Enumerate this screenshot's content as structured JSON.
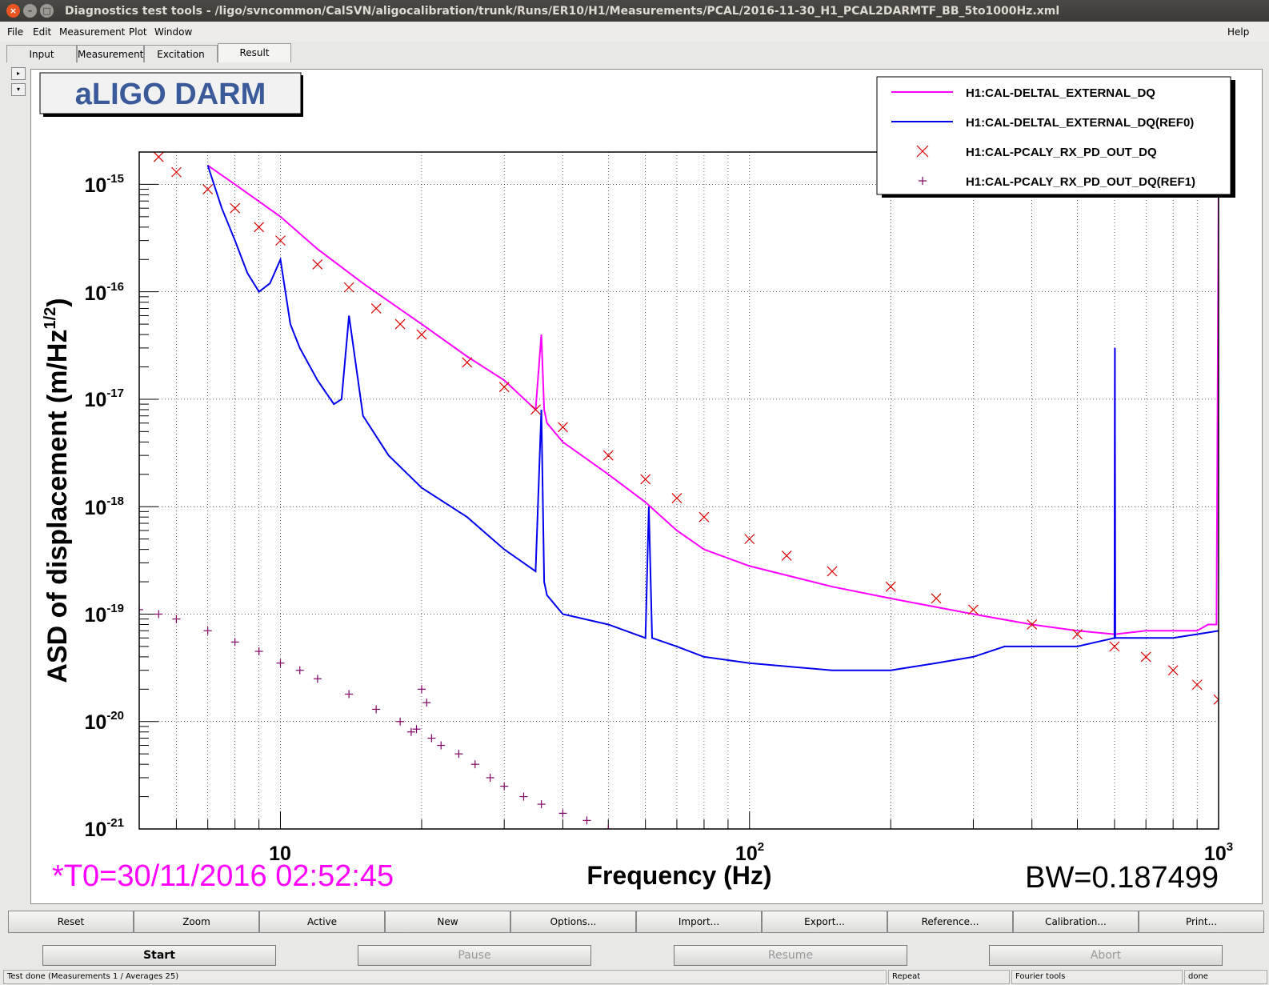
{
  "window": {
    "title": "Diagnostics test tools - /ligo/svncommon/CalSVN/aligocalibration/trunk/Runs/ER10/H1/Measurements/PCAL/2016-11-30_H1_PCAL2DARMTF_BB_5to1000Hz.xml",
    "close_glyph": "×",
    "min_glyph": "–",
    "max_glyph": "□"
  },
  "menu": {
    "file": "File",
    "edit": "Edit",
    "measurement": "Measurement",
    "plot": "Plot",
    "window": "Window",
    "help": "Help"
  },
  "tabs": [
    "Input",
    "Measurement",
    "Excitation",
    "Result"
  ],
  "side_arrows": [
    "▸",
    "▾"
  ],
  "plot": {
    "title_box": "aLIGO DARM",
    "ylabel": "ASD of displacement (m/Hz",
    "ylabel_sup": "1/2",
    "ylabel_end": ")",
    "xlabel": "Frequency (Hz)",
    "x_ticks": [
      {
        "base": "10",
        "exp": ""
      },
      {
        "base": "10",
        "exp": "2"
      },
      {
        "base": "10",
        "exp": "3"
      }
    ],
    "y_ticks": [
      {
        "base": "10",
        "exp": "-15"
      },
      {
        "base": "10",
        "exp": "-16"
      },
      {
        "base": "10",
        "exp": "-17"
      },
      {
        "base": "10",
        "exp": "-18"
      },
      {
        "base": "10",
        "exp": "-19"
      },
      {
        "base": "10",
        "exp": "-20"
      },
      {
        "base": "10",
        "exp": "-21"
      }
    ],
    "t0": "*T0=30/11/2016 02:52:45",
    "bw": "BW=0.187499",
    "colors": {
      "magenta": "#ff00ff",
      "blue": "#0000ee",
      "red": "#dd0000",
      "purple": "#800066",
      "t0": "#ff00ff",
      "title": "#3a5a9a"
    }
  },
  "chart_data": {
    "type": "line",
    "xlabel": "Frequency (Hz)",
    "ylabel": "ASD of displacement (m/Hz^1/2)",
    "x_scale": "log",
    "y_scale": "log",
    "xlim": [
      5,
      1000
    ],
    "ylim": [
      1e-21,
      2e-15
    ],
    "grid": true,
    "legend": "top-right",
    "series": [
      {
        "name": "H1:CAL-DELTAL_EXTERNAL_DQ",
        "style": "line",
        "color": "#ff00ff",
        "x": [
          7,
          8,
          10,
          12,
          15,
          20,
          25,
          30,
          35,
          36,
          36.5,
          37,
          40,
          50,
          60,
          70,
          80,
          100,
          150,
          200,
          300,
          400,
          500,
          600,
          601,
          602,
          700,
          800,
          900,
          950,
          990,
          1000
        ],
        "y": [
          1.5e-15,
          1e-15,
          5e-16,
          2.5e-16,
          1.2e-16,
          5e-17,
          2.5e-17,
          1.5e-17,
          8e-18,
          4e-17,
          8e-18,
          6e-18,
          4e-18,
          2e-18,
          1.1e-18,
          6e-19,
          4e-19,
          2.8e-19,
          1.8e-19,
          1.4e-19,
          1e-19,
          8e-20,
          7e-20,
          6.5e-20,
          3e-17,
          6.5e-20,
          7e-20,
          7e-20,
          7e-20,
          8e-20,
          8e-20,
          1e-15
        ]
      },
      {
        "name": "H1:CAL-DELTAL_EXTERNAL_DQ(REF0)",
        "style": "line",
        "color": "#0000ee",
        "x": [
          7,
          7.5,
          8,
          8.5,
          9,
          9.5,
          10,
          10.5,
          11,
          12,
          13,
          13.5,
          14,
          15,
          17,
          20,
          25,
          30,
          35,
          36,
          36.5,
          37,
          40,
          50,
          60,
          61,
          62,
          70,
          80,
          100,
          150,
          200,
          250,
          300,
          350,
          400,
          450,
          500,
          550,
          600,
          601,
          602,
          700,
          800,
          900,
          1000
        ],
        "y": [
          1.5e-15,
          6e-16,
          3e-16,
          1.5e-16,
          1e-16,
          1.2e-16,
          2e-16,
          5e-17,
          3e-17,
          1.5e-17,
          9e-18,
          1e-17,
          6e-17,
          7e-18,
          3e-18,
          1.5e-18,
          8e-19,
          4e-19,
          2.5e-19,
          8e-18,
          2e-19,
          1.5e-19,
          1e-19,
          8e-20,
          6e-20,
          1e-18,
          6e-20,
          5e-20,
          4e-20,
          3.5e-20,
          3e-20,
          3e-20,
          3.5e-20,
          4e-20,
          5e-20,
          5e-20,
          5e-20,
          5e-20,
          5.5e-20,
          6e-20,
          3e-17,
          6e-20,
          6e-20,
          6e-20,
          6.5e-20,
          7e-20
        ]
      },
      {
        "name": "H1:CAL-PCALY_RX_PD_OUT_DQ",
        "style": "marker-x",
        "color": "#dd0000",
        "x": [
          5.5,
          6,
          7,
          8,
          9,
          10,
          12,
          14,
          16,
          18,
          20,
          25,
          30,
          35,
          40,
          50,
          60,
          70,
          80,
          100,
          120,
          150,
          200,
          250,
          300,
          400,
          500,
          600,
          700,
          800,
          900,
          1000
        ],
        "y": [
          1.8e-15,
          1.3e-15,
          9e-16,
          6e-16,
          4e-16,
          3e-16,
          1.8e-16,
          1.1e-16,
          7e-17,
          5e-17,
          4e-17,
          2.2e-17,
          1.3e-17,
          8e-18,
          5.5e-18,
          3e-18,
          1.8e-18,
          1.2e-18,
          8e-19,
          5e-19,
          3.5e-19,
          2.5e-19,
          1.8e-19,
          1.4e-19,
          1.1e-19,
          8e-20,
          6.5e-20,
          5e-20,
          4e-20,
          3e-20,
          2.2e-20,
          1.6e-20
        ]
      },
      {
        "name": "H1:CAL-PCALY_RX_PD_OUT_DQ(REF1)",
        "style": "marker-plus",
        "color": "#800066",
        "x": [
          5,
          5.5,
          6,
          7,
          8,
          9,
          10,
          11,
          12,
          14,
          16,
          18,
          19,
          19.5,
          20,
          20.5,
          21,
          22,
          24,
          26,
          28,
          30,
          33,
          36,
          40,
          45,
          50
        ],
        "y": [
          1.1e-19,
          1e-19,
          9e-20,
          7e-20,
          5.5e-20,
          4.5e-20,
          3.5e-20,
          3e-20,
          2.5e-20,
          1.8e-20,
          1.3e-20,
          1e-20,
          8e-21,
          8.5e-21,
          2e-20,
          1.5e-20,
          7e-21,
          6e-21,
          5e-21,
          4e-21,
          3e-21,
          2.5e-21,
          2e-21,
          1.7e-21,
          1.4e-21,
          1.2e-21,
          1e-21
        ]
      }
    ]
  },
  "buttons": [
    "Reset",
    "Zoom",
    "Active",
    "New",
    "Options...",
    "Import...",
    "Export...",
    "Reference...",
    "Calibration...",
    "Print..."
  ],
  "controls": {
    "start": "Start",
    "pause": "Pause",
    "resume": "Resume",
    "abort": "Abort"
  },
  "status": {
    "main": "Test done (Measurements 1 / Averages 25)",
    "repeat": "Repeat",
    "tools": "Fourier tools",
    "state": "done"
  }
}
